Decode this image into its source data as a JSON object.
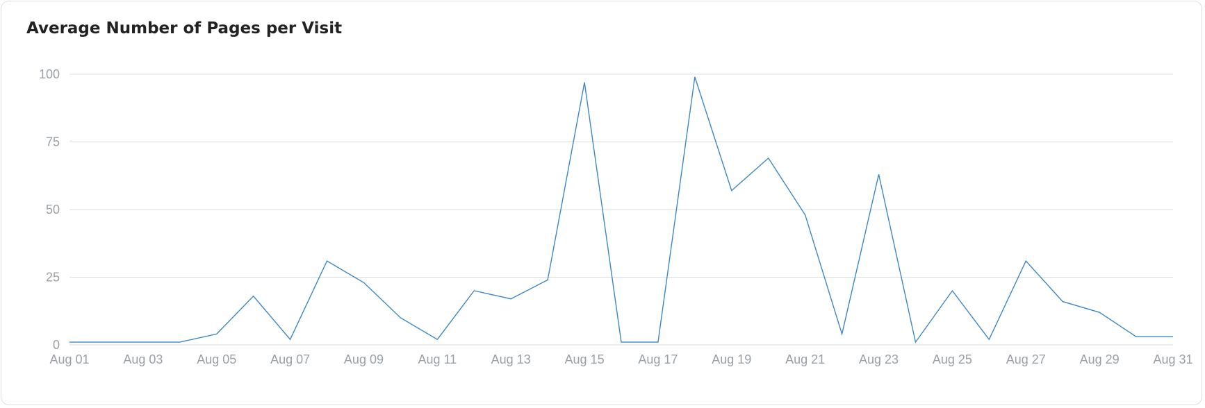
{
  "card": {
    "title": "Average Number of Pages per Visit"
  },
  "chart_data": {
    "type": "line",
    "title": "Average Number of Pages per Visit",
    "xlabel": "",
    "ylabel": "",
    "x": [
      "Aug 01",
      "Aug 02",
      "Aug 03",
      "Aug 04",
      "Aug 05",
      "Aug 06",
      "Aug 07",
      "Aug 08",
      "Aug 09",
      "Aug 10",
      "Aug 11",
      "Aug 12",
      "Aug 13",
      "Aug 14",
      "Aug 15",
      "Aug 16",
      "Aug 17",
      "Aug 18",
      "Aug 19",
      "Aug 20",
      "Aug 21",
      "Aug 22",
      "Aug 23",
      "Aug 24",
      "Aug 25",
      "Aug 26",
      "Aug 27",
      "Aug 28",
      "Aug 29",
      "Aug 30",
      "Aug 31"
    ],
    "x_tick_labels": [
      "Aug 01",
      "Aug 03",
      "Aug 05",
      "Aug 07",
      "Aug 09",
      "Aug 11",
      "Aug 13",
      "Aug 15",
      "Aug 17",
      "Aug 19",
      "Aug 21",
      "Aug 23",
      "Aug 25",
      "Aug 27",
      "Aug 29",
      "Aug 31"
    ],
    "y_ticks": [
      0,
      25,
      50,
      75,
      100
    ],
    "ylim": [
      0,
      100
    ],
    "grid": true,
    "legend": "none",
    "series": [
      {
        "color": "#3d86c6",
        "values": [
          1,
          1,
          1,
          1,
          4,
          18,
          2,
          31,
          23,
          10,
          2,
          20,
          17,
          24,
          97,
          1,
          1,
          99,
          57,
          69,
          48,
          4,
          63,
          1,
          20,
          2,
          31,
          16,
          12,
          3,
          3
        ]
      }
    ]
  }
}
